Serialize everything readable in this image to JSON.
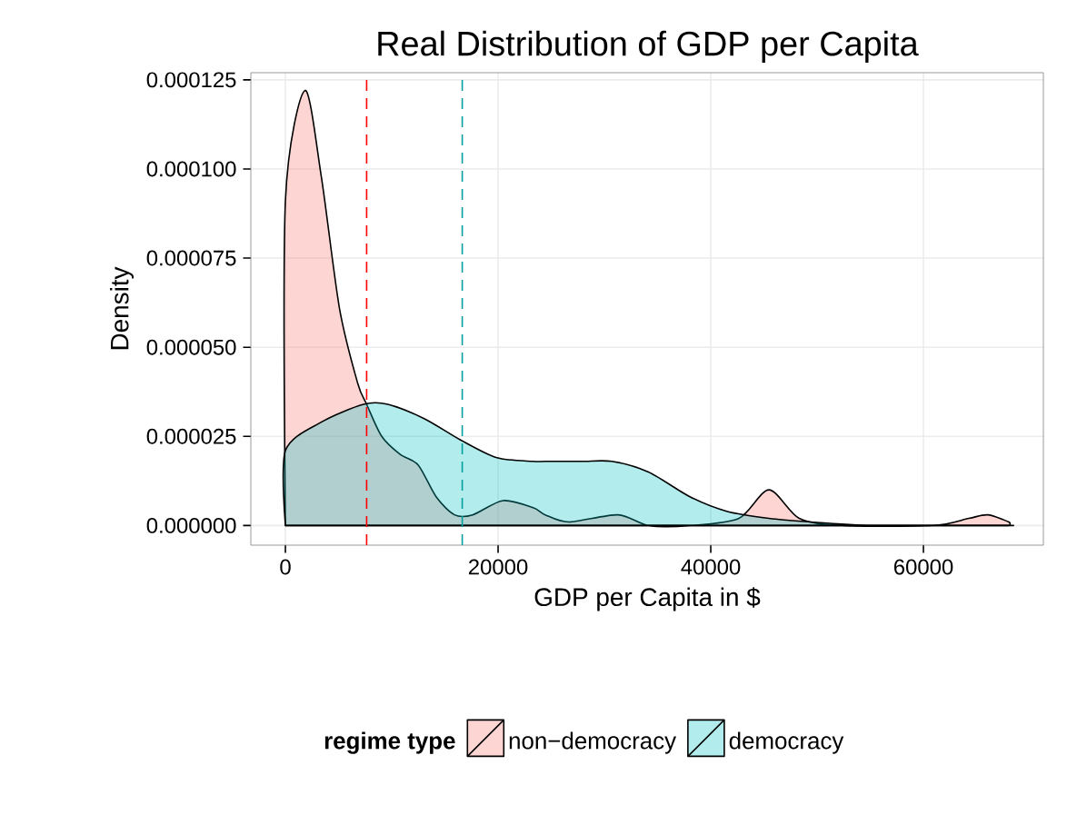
{
  "chart_data": {
    "type": "area",
    "title": "Real Distribution of GDP per Capita",
    "xlabel": "GDP per Capita in $",
    "ylabel": "Density",
    "legend_title": "regime type",
    "series": [
      {
        "name": "non−democracy",
        "color": "#f8766d",
        "x": [
          0,
          1830,
          3370,
          5080,
          6790,
          7640,
          9060,
          10770,
          12480,
          14190,
          15900,
          17610,
          20460,
          23300,
          24440,
          26670,
          31280,
          34140,
          38080,
          42650,
          45470,
          48320,
          52310,
          60850,
          64270,
          66040,
          68030
        ],
        "values": [
          9.1e-05,
          0.000122,
          9.8e-05,
          6.1e-05,
          4e-05,
          3.4e-05,
          2.5e-05,
          2e-05,
          1.7e-05,
          8e-06,
          3e-06,
          3e-06,
          7e-06,
          5e-06,
          3e-06,
          1e-06,
          3e-06,
          0.0,
          0.0,
          2e-06,
          1e-05,
          2e-06,
          0.0,
          0.0,
          2e-06,
          3e-06,
          1e-06
        ]
      },
      {
        "name": "democracy",
        "color": "#00bfc4",
        "x": [
          0,
          3370,
          7350,
          9630,
          13050,
          16470,
          19890,
          23300,
          24440,
          27860,
          30700,
          34140,
          38080,
          41500,
          45470,
          49460,
          55160,
          60850,
          68030
        ],
        "values": [
          2.1e-05,
          2.9e-05,
          3.4e-05,
          3.4e-05,
          3e-05,
          2.4e-05,
          1.9e-05,
          1.8e-05,
          1.8e-05,
          1.8e-05,
          1.8e-05,
          1.5e-05,
          8e-06,
          4e-06,
          2e-06,
          1e-06,
          0.0,
          0.0,
          0.0
        ]
      }
    ],
    "xlim": [
      -3250,
      71280
    ],
    "ylim": [
      -5.5e-06,
      0.000127
    ],
    "xticks": [
      0,
      20000,
      40000,
      60000
    ],
    "yticks": [
      {
        "value": 0,
        "label": "0.000000"
      },
      {
        "value": 2.5e-05,
        "label": "0.000025"
      },
      {
        "value": 5e-05,
        "label": "0.000050"
      },
      {
        "value": 7.5e-05,
        "label": "0.000075"
      },
      {
        "value": 0.0001,
        "label": "0.000100"
      },
      {
        "value": 0.000125,
        "label": "0.000125"
      }
    ],
    "ref_lines": [
      {
        "axis": "x",
        "value": 7640,
        "color": "#ff0000",
        "line_style": "dashed"
      },
      {
        "axis": "x",
        "value": 16630,
        "color": "#00a0a0",
        "line_style": "dashed"
      }
    ],
    "grid": true,
    "legend": "bottom"
  }
}
